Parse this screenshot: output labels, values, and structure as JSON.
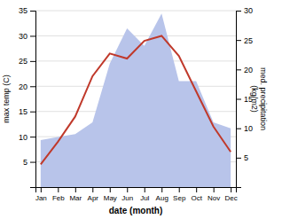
{
  "chart_data": {
    "type": "line",
    "categories": [
      "Jan",
      "Feb",
      "Mar",
      "Apr",
      "May",
      "Jun",
      "Jul",
      "Aug",
      "Sep",
      "Oct",
      "Nov",
      "Dec"
    ],
    "series": [
      {
        "type": "area",
        "axis": "y2",
        "color": "#b8c4ea",
        "values": [
          8.0,
          8.5,
          9.0,
          11.0,
          21.0,
          27.0,
          24.0,
          29.5,
          18.0,
          18.0,
          11.0,
          10.0
        ]
      },
      {
        "type": "line",
        "color": "#c0392b",
        "values": [
          4.5,
          9.0,
          14.0,
          22.0,
          26.5,
          25.5,
          29.0,
          30.0,
          26.0,
          19.0,
          12.0,
          7.0
        ]
      }
    ],
    "xlabel": "date (month)",
    "ylabel": "max temp (C)",
    "y2label": "med. precipitation\n(kg/m2)",
    "ylim": [
      0,
      35
    ],
    "yticks": [
      5,
      10,
      15,
      20,
      25,
      30,
      35
    ],
    "y2lim": [
      0,
      30
    ],
    "y2ticks": [
      5,
      10,
      15,
      20,
      25,
      30
    ],
    "grid": true
  }
}
